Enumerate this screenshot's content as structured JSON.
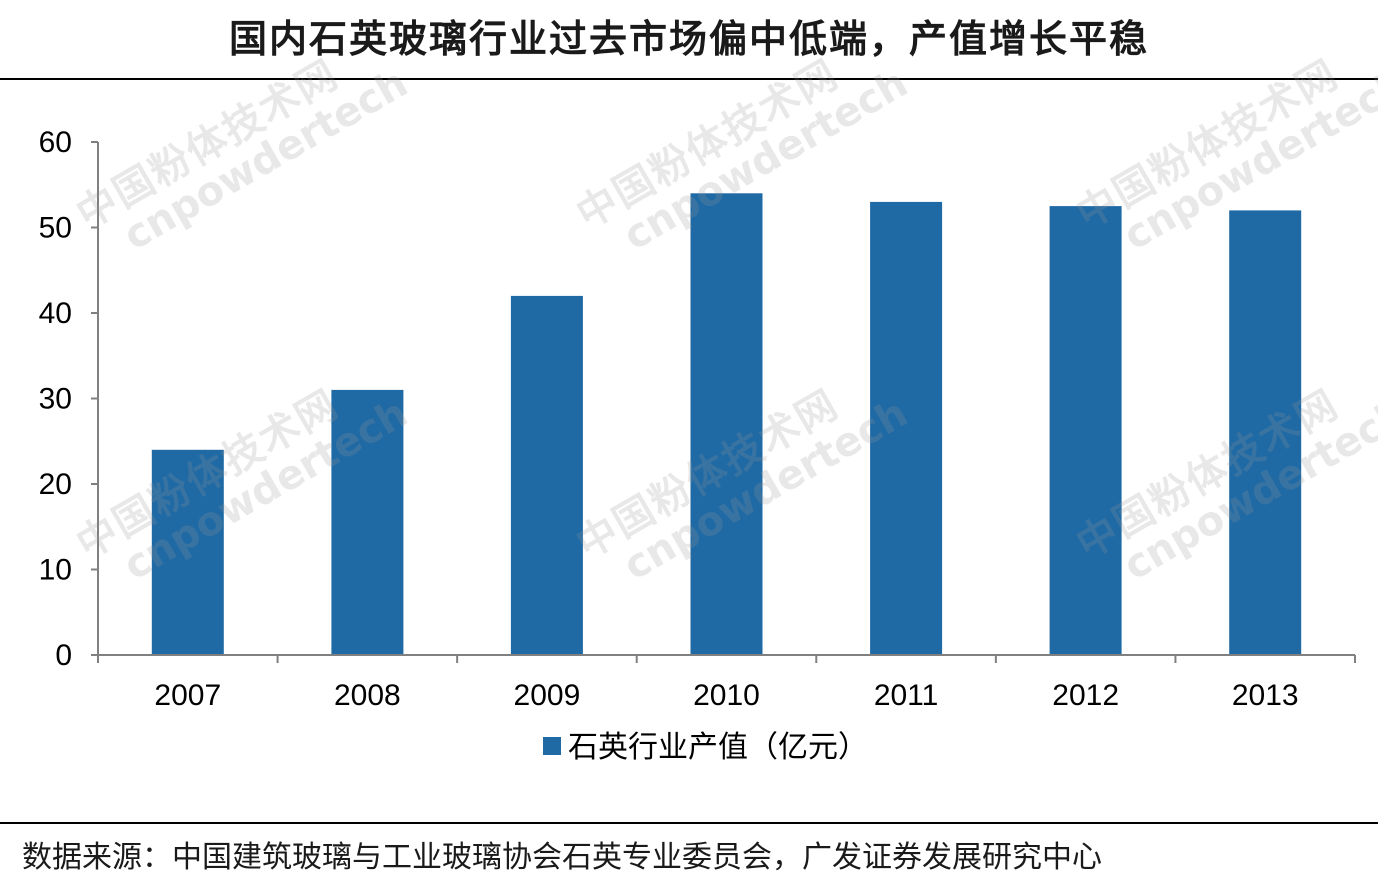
{
  "title": "国内石英玻璃行业过去市场偏中低端，产值增长平稳",
  "source": "数据来源：中国建筑玻璃与工业玻璃协会石英专业委员会，广发证券发展研究中心",
  "watermark": {
    "line1": "中国粉体技术网",
    "line2": "cnpowdertech"
  },
  "colors": {
    "bar": "#1f6aa5",
    "axis": "#808080",
    "text": "#000000"
  },
  "chart_data": {
    "type": "bar",
    "categories": [
      "2007",
      "2008",
      "2009",
      "2010",
      "2011",
      "2012",
      "2013"
    ],
    "series": [
      {
        "name": "石英行业产值（亿元）",
        "values": [
          24,
          31,
          42,
          54,
          53,
          52.5,
          52
        ]
      }
    ],
    "title": "",
    "xlabel": "",
    "ylabel": "",
    "ylim": [
      0,
      60
    ],
    "yticks": [
      0,
      10,
      20,
      30,
      40,
      50,
      60
    ],
    "grid": false,
    "legend": "bottom"
  }
}
